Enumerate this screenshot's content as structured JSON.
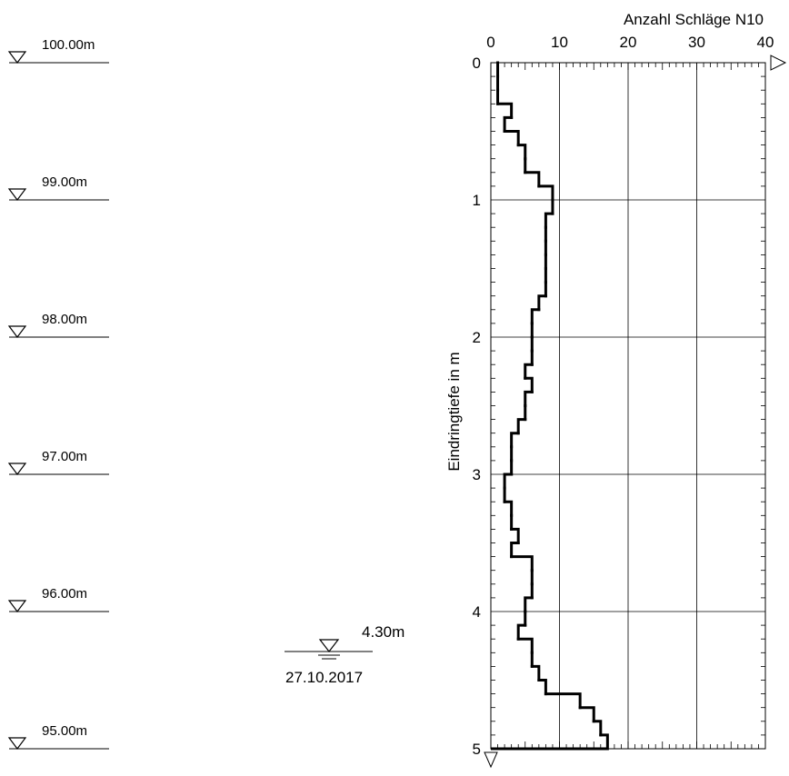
{
  "elevation_scale": {
    "marks": [
      "100.00m",
      "99.00m",
      "98.00m",
      "97.00m",
      "96.00m",
      "95.00m"
    ]
  },
  "groundwater": {
    "depth_label": "4.30m",
    "date_label": "27.10.2017"
  },
  "chart_data": {
    "type": "line",
    "step": true,
    "xlabel": "Anzahl Schläge N10",
    "ylabel": "Eindringtiefe in m",
    "x_ticks": [
      "0",
      "10",
      "20",
      "30",
      "40"
    ],
    "y_ticks": [
      "0",
      "1",
      "2",
      "3",
      "4",
      "5"
    ],
    "xlim": [
      0,
      40
    ],
    "ylim": [
      0,
      5
    ],
    "y_inverted": true,
    "grid": true,
    "series": [
      {
        "depth_from": [
          0.0,
          0.1,
          0.2,
          0.3,
          0.4,
          0.5,
          0.6,
          0.7,
          0.8,
          0.9,
          1.0,
          1.1,
          1.2,
          1.3,
          1.4,
          1.5,
          1.6,
          1.7,
          1.8,
          1.9,
          2.0,
          2.1,
          2.2,
          2.3,
          2.4,
          2.5,
          2.6,
          2.7,
          2.8,
          2.9,
          3.0,
          3.1,
          3.2,
          3.3,
          3.4,
          3.5,
          3.6,
          3.7,
          3.8,
          3.9,
          4.0,
          4.1,
          4.2,
          4.3,
          4.4,
          4.5,
          4.6,
          4.7,
          4.8,
          4.9
        ],
        "depth_to": [
          0.1,
          0.2,
          0.3,
          0.4,
          0.5,
          0.6,
          0.7,
          0.8,
          0.9,
          1.0,
          1.1,
          1.2,
          1.3,
          1.4,
          1.5,
          1.6,
          1.7,
          1.8,
          1.9,
          2.0,
          2.1,
          2.2,
          2.3,
          2.4,
          2.5,
          2.6,
          2.7,
          2.8,
          2.9,
          3.0,
          3.1,
          3.2,
          3.3,
          3.4,
          3.5,
          3.6,
          3.7,
          3.8,
          3.9,
          4.0,
          4.1,
          4.2,
          4.3,
          4.4,
          4.5,
          4.6,
          4.7,
          4.8,
          4.9,
          5.0
        ],
        "blows": [
          1,
          1,
          1,
          3,
          2,
          4,
          5,
          5,
          7,
          9,
          9,
          8,
          8,
          8,
          8,
          8,
          8,
          7,
          6,
          6,
          6,
          6,
          5,
          6,
          5,
          5,
          4,
          3,
          3,
          3,
          2,
          2,
          3,
          3,
          4,
          3,
          6,
          6,
          6,
          5,
          5,
          4,
          6,
          6,
          7,
          8,
          13,
          15,
          16,
          17
        ]
      }
    ]
  }
}
